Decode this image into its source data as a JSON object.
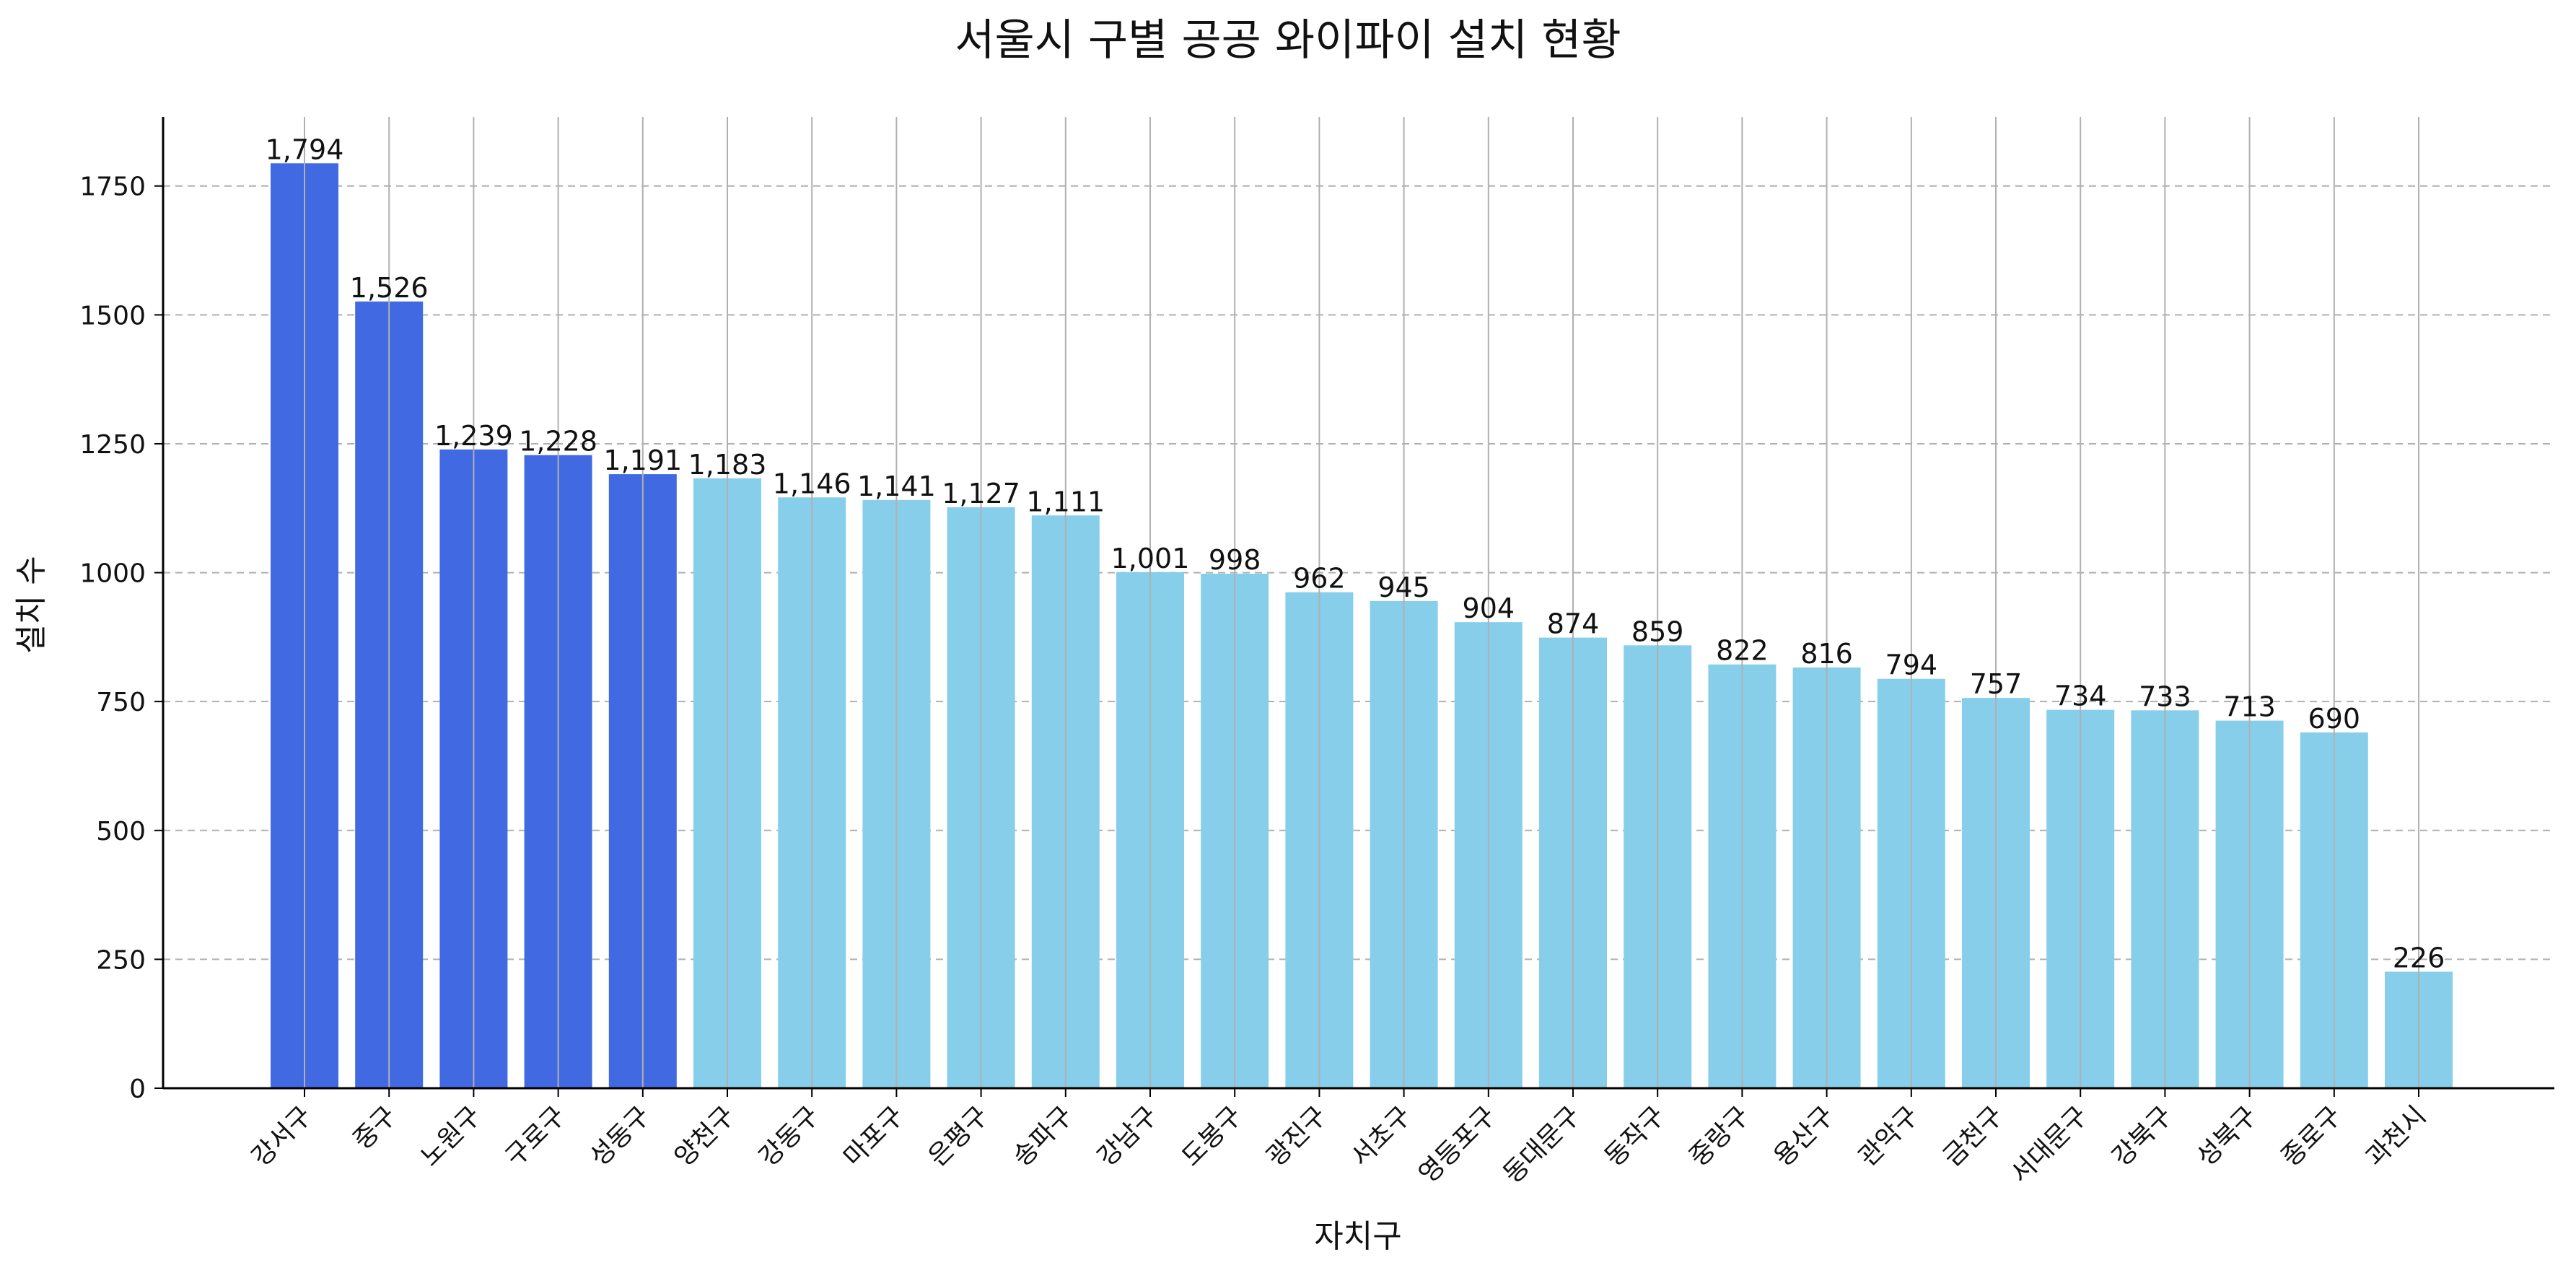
{
  "chart_data": {
    "type": "bar",
    "title": "서울시 구별 공공 와이파이 설치 현황",
    "xlabel": "자치구",
    "ylabel": "설치 수",
    "categories": [
      "강서구",
      "중구",
      "노원구",
      "구로구",
      "성동구",
      "양천구",
      "강동구",
      "마포구",
      "은평구",
      "송파구",
      "강남구",
      "도봉구",
      "광진구",
      "서초구",
      "영등포구",
      "동대문구",
      "동작구",
      "중랑구",
      "용산구",
      "관악구",
      "금천구",
      "서대문구",
      "강북구",
      "성북구",
      "종로구",
      "과천시"
    ],
    "values": [
      1794,
      1526,
      1239,
      1228,
      1191,
      1183,
      1146,
      1141,
      1127,
      1111,
      1001,
      998,
      962,
      945,
      904,
      874,
      859,
      822,
      816,
      794,
      757,
      734,
      733,
      713,
      690,
      226
    ],
    "value_labels": [
      "1,794",
      "1,526",
      "1,239",
      "1,228",
      "1,191",
      "1,183",
      "1,146",
      "1,141",
      "1,127",
      "1,111",
      "1,001",
      "998",
      "962",
      "945",
      "904",
      "874",
      "859",
      "822",
      "816",
      "794",
      "757",
      "734",
      "733",
      "713",
      "690",
      "226"
    ],
    "highlight_count": 5,
    "colors": {
      "highlight": "#4169e1",
      "normal": "#87ceeb",
      "grid": "#b0b0b0",
      "axis": "#000000"
    },
    "ylim": [
      0,
      1884
    ],
    "yticks": [
      0,
      250,
      500,
      750,
      1000,
      1250,
      1500,
      1750
    ],
    "ytick_labels": [
      "0",
      "250",
      "500",
      "750",
      "1000",
      "1250",
      "1500",
      "1750"
    ],
    "grid": {
      "horizontal": "dashed",
      "vertical": "solid"
    },
    "legend": "none"
  }
}
